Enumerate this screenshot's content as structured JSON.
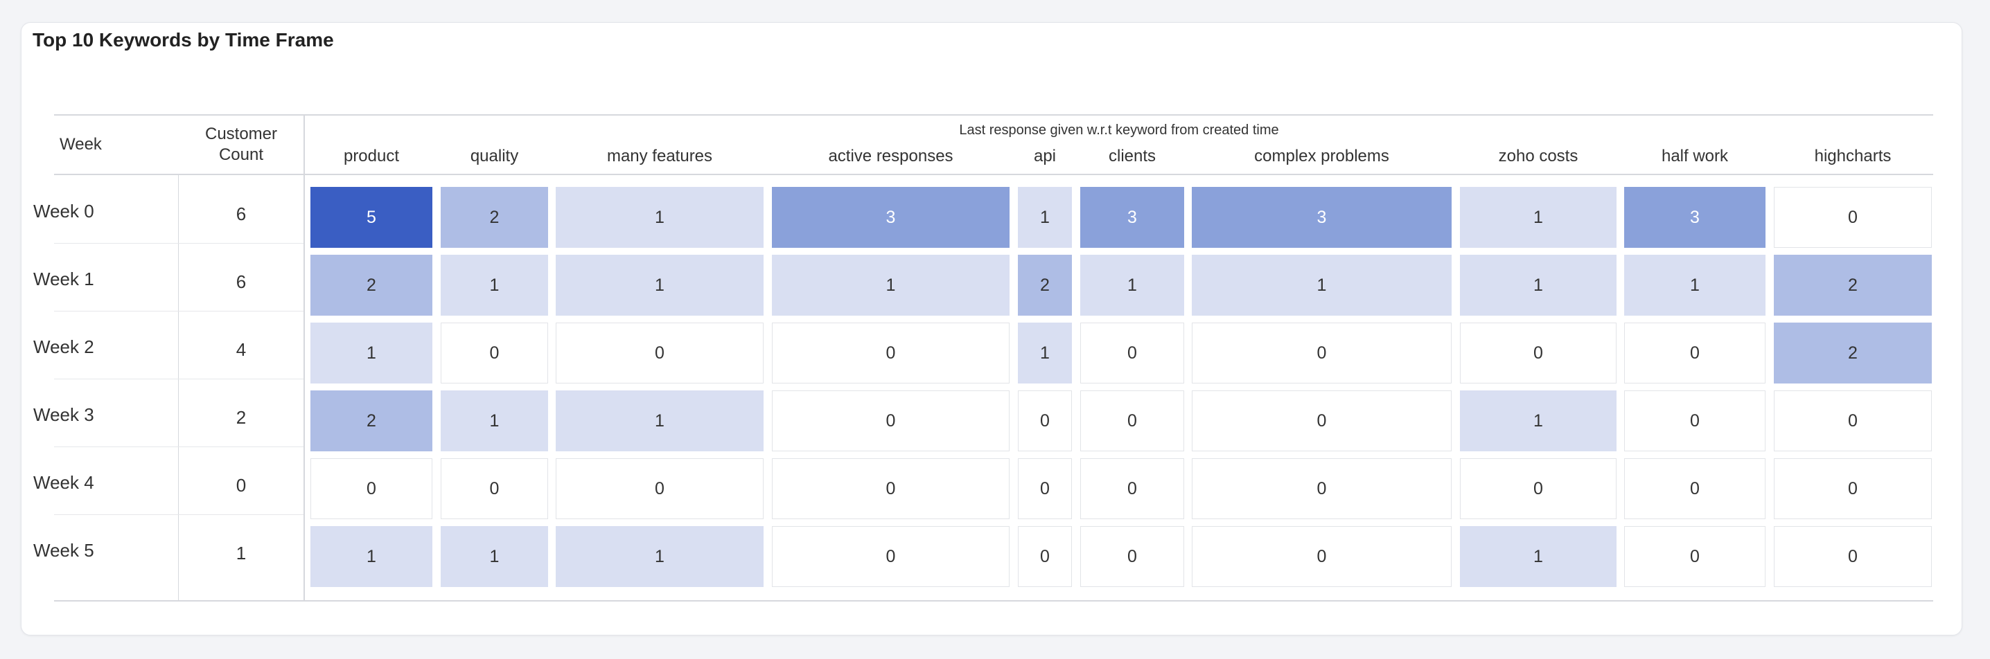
{
  "title": "Top 10 Keywords by Time Frame",
  "colors": {
    "level_0": "#ffffff",
    "level_1": "#d9dff2",
    "level_2": "#aebde5",
    "level_3": "#8aa1da",
    "level_5": "#3a5ec3"
  },
  "chart_data": {
    "type": "heatmap",
    "title": "Top 10 Keywords by Time Frame",
    "row_header": "Week",
    "count_header_line1": "Customer",
    "count_header_line2": "Count",
    "column_group_label": "Last response given w.r.t keyword from created time",
    "columns": [
      "product",
      "quality",
      "many features",
      "active responses",
      "api",
      "clients",
      "complex problems",
      "zoho costs",
      "half work",
      "highcharts"
    ],
    "rows": [
      "Week 0",
      "Week 1",
      "Week 2",
      "Week 3",
      "Week 4",
      "Week 5"
    ],
    "customer_count": [
      6,
      6,
      4,
      2,
      0,
      1
    ],
    "values": [
      [
        5,
        2,
        1,
        3,
        1,
        3,
        3,
        1,
        3,
        0
      ],
      [
        2,
        1,
        1,
        1,
        2,
        1,
        1,
        1,
        1,
        2
      ],
      [
        1,
        0,
        0,
        0,
        1,
        0,
        0,
        0,
        0,
        2
      ],
      [
        2,
        1,
        1,
        0,
        0,
        0,
        0,
        1,
        0,
        0
      ],
      [
        0,
        0,
        0,
        0,
        0,
        0,
        0,
        0,
        0,
        0
      ],
      [
        1,
        1,
        1,
        0,
        0,
        0,
        0,
        1,
        0,
        0
      ]
    ]
  }
}
